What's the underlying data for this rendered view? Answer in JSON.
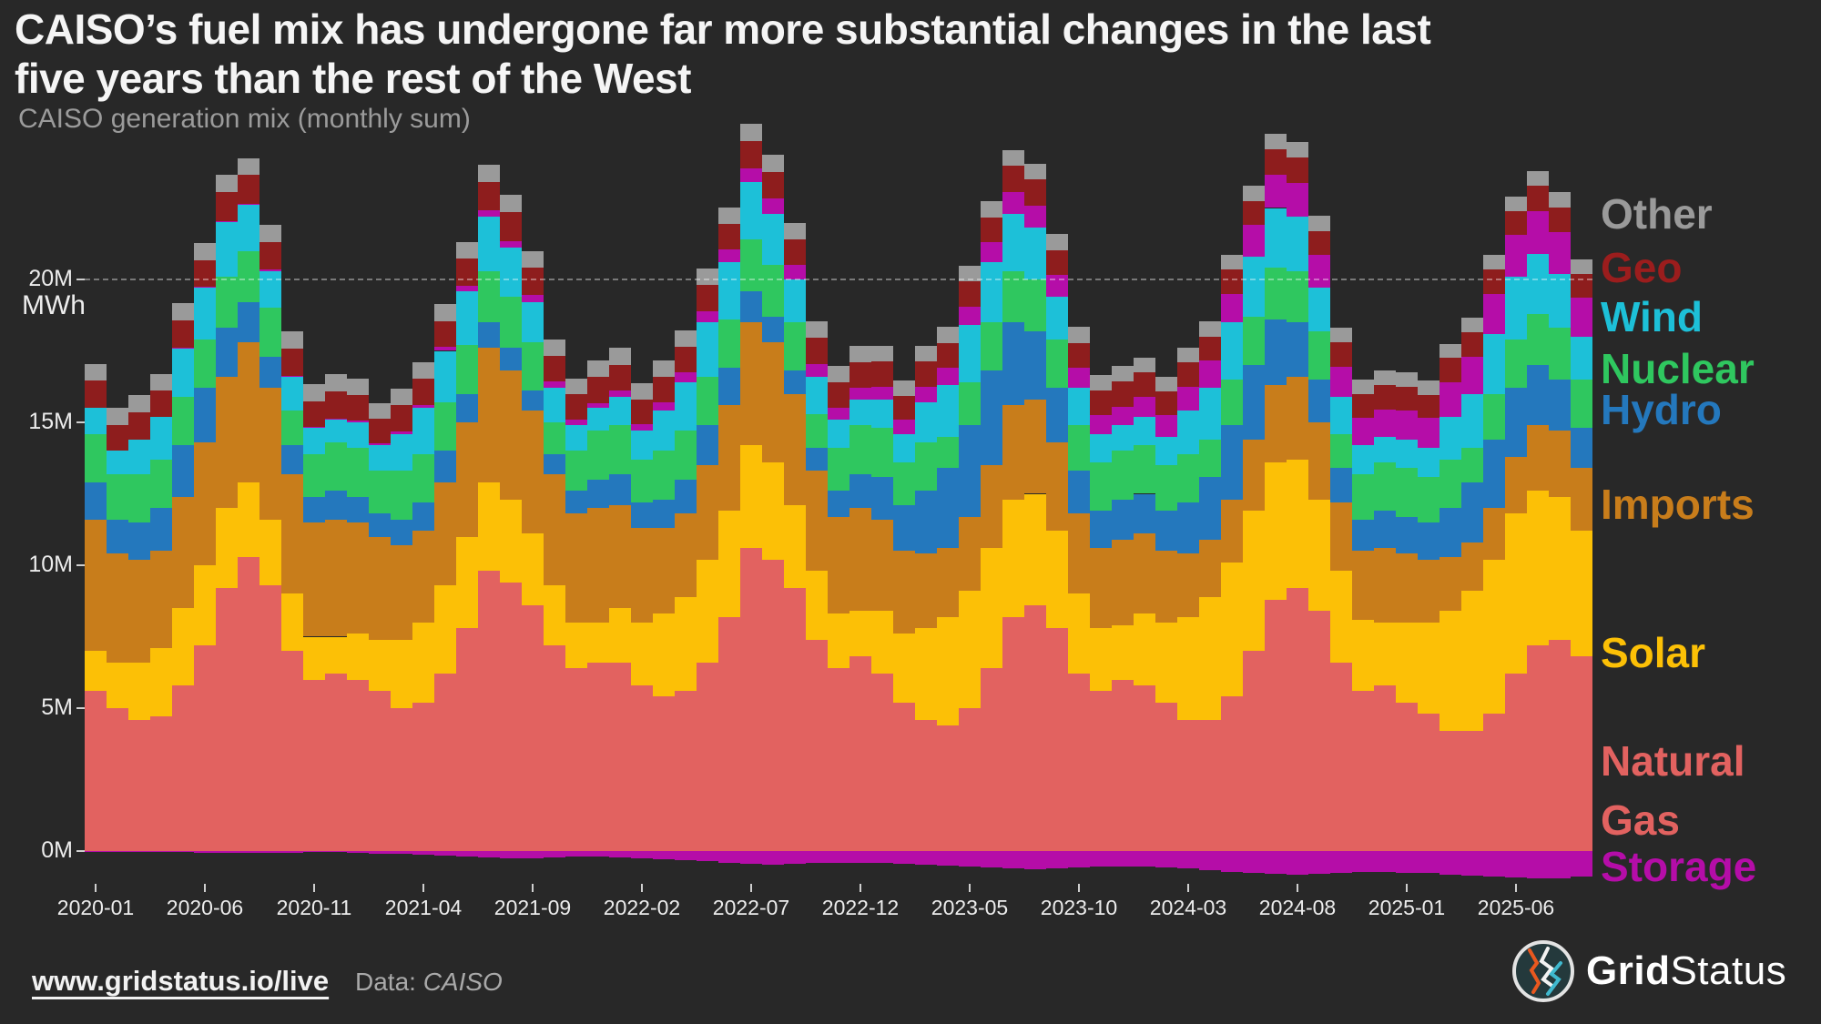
{
  "header": {
    "title": "CAISO’s fuel mix has undergone far more substantial changes in the last five years than the rest of the West",
    "subtitle": "CAISO generation mix (monthly sum)"
  },
  "legend": {
    "items": [
      {
        "id": "other",
        "label": "Other",
        "color": "#9a9a9a"
      },
      {
        "id": "geo",
        "label": "Geo",
        "color": "#9b1d1d"
      },
      {
        "id": "wind",
        "label": "Wind",
        "color": "#1dc0d8"
      },
      {
        "id": "nuclear",
        "label": "Nuclear",
        "color": "#2fc75f"
      },
      {
        "id": "hydro",
        "label": "Hydro",
        "color": "#2478bd"
      },
      {
        "id": "imports",
        "label": "Imports",
        "color": "#c87d1b"
      },
      {
        "id": "solar",
        "label": "Solar",
        "color": "#fcc006"
      },
      {
        "id": "natural_gas",
        "label": "Natural\nGas",
        "color": "#e26260"
      },
      {
        "id": "storage",
        "label": "Storage",
        "color": "#b50da8"
      }
    ]
  },
  "footer": {
    "url": "www.gridstatus.io/live",
    "data_label": "Data: ",
    "data_source": "CAISO"
  },
  "brand": {
    "word1": "Grid",
    "word2": "Status"
  },
  "colors": {
    "background": "#282828",
    "title_text": "#f5f5f5",
    "subtitle_text": "#9b9b9b",
    "axis_text": "#ececec",
    "gridline": "rgba(255,255,255,0.38)"
  },
  "chart_data": {
    "type": "bar",
    "stacked": true,
    "title": "CAISO generation mix (monthly sum)",
    "ylabel": "MWh",
    "unit": "million MWh",
    "ylim": [
      -1.1,
      25.6
    ],
    "y_ticks": [
      {
        "value": 20,
        "label": "20M"
      },
      {
        "value": 15,
        "label": "15M"
      },
      {
        "value": 10,
        "label": "10M"
      },
      {
        "value": 5,
        "label": "5M"
      },
      {
        "value": 0,
        "label": "0M"
      }
    ],
    "dashed_gridline_value": 20,
    "x_tick_indices": [
      0,
      5,
      10,
      15,
      20,
      25,
      30,
      35,
      40,
      45,
      50,
      55,
      60,
      65
    ],
    "x": [
      "2020-01",
      "2020-02",
      "2020-03",
      "2020-04",
      "2020-05",
      "2020-06",
      "2020-07",
      "2020-08",
      "2020-09",
      "2020-10",
      "2020-11",
      "2020-12",
      "2021-01",
      "2021-02",
      "2021-03",
      "2021-04",
      "2021-05",
      "2021-06",
      "2021-07",
      "2021-08",
      "2021-09",
      "2021-10",
      "2021-11",
      "2021-12",
      "2022-01",
      "2022-02",
      "2022-03",
      "2022-04",
      "2022-05",
      "2022-06",
      "2022-07",
      "2022-08",
      "2022-09",
      "2022-10",
      "2022-11",
      "2022-12",
      "2023-01",
      "2023-02",
      "2023-03",
      "2023-04",
      "2023-05",
      "2023-06",
      "2023-07",
      "2023-08",
      "2023-09",
      "2023-10",
      "2023-11",
      "2023-12",
      "2024-01",
      "2024-02",
      "2024-03",
      "2024-04",
      "2024-05",
      "2024-06",
      "2024-07",
      "2024-08",
      "2024-09",
      "2024-10",
      "2024-11",
      "2024-12",
      "2025-01",
      "2025-02",
      "2025-03",
      "2025-04",
      "2025-05",
      "2025-06",
      "2025-07",
      "2025-08",
      "2025-09"
    ],
    "series": [
      {
        "id": "natural_gas",
        "name": "Natural Gas",
        "color": "#e26260",
        "values": [
          5.6,
          5.0,
          4.6,
          4.7,
          5.8,
          7.2,
          9.2,
          10.3,
          9.3,
          7.0,
          6.0,
          6.2,
          6.0,
          5.6,
          5.0,
          5.2,
          6.2,
          7.8,
          9.8,
          9.4,
          8.6,
          7.2,
          6.4,
          6.6,
          6.6,
          5.8,
          5.4,
          5.6,
          6.6,
          8.2,
          10.6,
          10.2,
          9.2,
          7.4,
          6.4,
          6.8,
          6.2,
          5.2,
          4.6,
          4.4,
          5.0,
          6.4,
          8.2,
          8.6,
          7.8,
          6.2,
          5.6,
          6.0,
          5.8,
          5.2,
          4.6,
          4.6,
          5.4,
          7.0,
          8.8,
          9.2,
          8.4,
          6.6,
          5.6,
          5.8,
          5.2,
          4.8,
          4.2,
          4.2,
          4.8,
          6.2,
          7.2,
          7.4,
          6.8
        ]
      },
      {
        "id": "solar",
        "name": "Solar",
        "color": "#fcc006",
        "values": [
          1.4,
          1.6,
          2.0,
          2.4,
          2.7,
          2.8,
          2.8,
          2.6,
          2.3,
          2.0,
          1.5,
          1.3,
          1.6,
          1.8,
          2.4,
          2.8,
          3.1,
          3.2,
          3.1,
          2.9,
          2.5,
          2.1,
          1.6,
          1.4,
          1.9,
          2.2,
          2.9,
          3.3,
          3.6,
          3.7,
          3.6,
          3.4,
          2.9,
          2.4,
          1.9,
          1.6,
          2.2,
          2.4,
          3.2,
          3.8,
          4.1,
          4.2,
          4.1,
          3.9,
          3.4,
          2.8,
          2.2,
          1.9,
          2.5,
          2.8,
          3.6,
          4.3,
          4.7,
          4.9,
          4.8,
          4.5,
          3.9,
          3.2,
          2.5,
          2.2,
          2.8,
          3.2,
          4.2,
          4.9,
          5.4,
          5.6,
          5.4,
          5.0,
          4.4
        ]
      },
      {
        "id": "imports",
        "name": "Imports",
        "color": "#c87d1b",
        "values": [
          4.6,
          3.8,
          3.6,
          3.4,
          3.9,
          4.3,
          4.6,
          4.9,
          4.6,
          4.2,
          4.0,
          4.1,
          3.9,
          3.6,
          3.3,
          3.2,
          3.6,
          4.0,
          4.7,
          4.5,
          4.3,
          3.9,
          3.8,
          4.0,
          3.6,
          3.3,
          3.0,
          2.9,
          3.3,
          3.7,
          4.3,
          4.2,
          3.9,
          3.5,
          3.4,
          3.6,
          3.2,
          2.9,
          2.6,
          2.4,
          2.6,
          2.9,
          3.3,
          3.3,
          3.1,
          2.8,
          2.8,
          3.0,
          2.8,
          2.5,
          2.2,
          2.0,
          2.2,
          2.5,
          2.7,
          2.9,
          2.7,
          2.4,
          2.4,
          2.6,
          2.4,
          2.2,
          1.9,
          1.7,
          1.8,
          2.0,
          2.3,
          2.3,
          2.2
        ]
      },
      {
        "id": "hydro",
        "name": "Hydro",
        "color": "#2478bd",
        "values": [
          1.3,
          1.2,
          1.3,
          1.5,
          1.8,
          1.9,
          1.7,
          1.4,
          1.1,
          1.0,
          0.9,
          1.0,
          0.9,
          0.8,
          0.9,
          1.0,
          1.1,
          1.0,
          0.9,
          0.8,
          0.7,
          0.7,
          0.8,
          1.0,
          1.1,
          0.9,
          1.0,
          1.2,
          1.4,
          1.3,
          1.1,
          0.9,
          0.8,
          0.8,
          0.9,
          1.2,
          1.5,
          1.6,
          2.2,
          2.8,
          3.2,
          3.3,
          2.9,
          2.4,
          1.9,
          1.5,
          1.3,
          1.4,
          1.4,
          1.4,
          1.8,
          2.2,
          2.6,
          2.6,
          2.3,
          1.9,
          1.5,
          1.2,
          1.1,
          1.3,
          1.3,
          1.3,
          1.7,
          2.1,
          2.4,
          2.4,
          2.1,
          1.8,
          1.4
        ]
      },
      {
        "id": "nuclear",
        "name": "Nuclear",
        "color": "#2fc75f",
        "values": [
          1.7,
          1.6,
          1.7,
          1.7,
          1.7,
          1.7,
          1.8,
          1.8,
          1.7,
          1.2,
          1.5,
          1.7,
          1.7,
          1.5,
          1.7,
          1.7,
          1.7,
          1.7,
          1.8,
          1.8,
          1.7,
          1.1,
          1.4,
          1.7,
          1.7,
          1.5,
          1.7,
          1.7,
          1.7,
          1.7,
          1.8,
          1.8,
          1.7,
          1.2,
          1.5,
          1.7,
          1.7,
          1.5,
          1.7,
          1.1,
          1.5,
          1.7,
          1.8,
          1.8,
          1.7,
          1.6,
          1.7,
          1.7,
          1.7,
          1.6,
          1.7,
          1.3,
          1.6,
          1.7,
          1.8,
          1.8,
          1.7,
          1.2,
          1.6,
          1.7,
          1.7,
          1.6,
          1.7,
          1.2,
          1.6,
          1.7,
          1.8,
          1.8,
          1.7
        ]
      },
      {
        "id": "wind",
        "name": "Wind",
        "color": "#1dc0d8",
        "values": [
          0.9,
          0.8,
          1.2,
          1.5,
          1.7,
          1.8,
          1.9,
          1.6,
          1.3,
          1.2,
          0.9,
          0.8,
          0.9,
          0.9,
          1.3,
          1.6,
          1.8,
          1.9,
          1.9,
          1.7,
          1.4,
          1.2,
          0.9,
          0.8,
          1.0,
          1.0,
          1.4,
          1.7,
          1.9,
          2.0,
          2.0,
          1.8,
          1.5,
          1.3,
          1.0,
          0.9,
          1.0,
          1.0,
          1.4,
          1.8,
          2.0,
          2.1,
          2.0,
          1.8,
          1.5,
          1.3,
          1.0,
          0.9,
          1.0,
          1.0,
          1.5,
          1.8,
          2.0,
          2.1,
          2.1,
          1.9,
          1.5,
          1.3,
          1.0,
          0.9,
          1.0,
          1.0,
          1.5,
          1.9,
          2.1,
          2.2,
          2.1,
          1.9,
          1.5
        ]
      },
      {
        "id": "storage",
        "name": "Storage (discharge)",
        "color": "#b50da8",
        "values": [
          0.0,
          0.0,
          0.0,
          0.0,
          0.02,
          0.03,
          0.05,
          0.05,
          0.05,
          0.04,
          0.03,
          0.03,
          0.06,
          0.07,
          0.09,
          0.12,
          0.15,
          0.18,
          0.22,
          0.25,
          0.25,
          0.22,
          0.18,
          0.18,
          0.22,
          0.25,
          0.3,
          0.35,
          0.4,
          0.45,
          0.5,
          0.52,
          0.5,
          0.45,
          0.4,
          0.4,
          0.45,
          0.48,
          0.55,
          0.6,
          0.65,
          0.7,
          0.75,
          0.78,
          0.75,
          0.7,
          0.65,
          0.65,
          0.7,
          0.75,
          0.85,
          0.95,
          1.0,
          1.1,
          1.15,
          1.18,
          1.15,
          1.05,
          0.95,
          0.95,
          1.0,
          1.05,
          1.2,
          1.3,
          1.4,
          1.45,
          1.5,
          1.45,
          1.35
        ]
      },
      {
        "id": "geo",
        "name": "Geo",
        "color": "#8e1d1d",
        "values": [
          0.95,
          0.9,
          0.95,
          0.9,
          0.95,
          0.95,
          1.0,
          1.0,
          0.95,
          0.95,
          0.9,
          0.95,
          0.9,
          0.85,
          0.9,
          0.9,
          0.9,
          0.95,
          1.0,
          1.0,
          0.95,
          0.9,
          0.9,
          0.9,
          0.9,
          0.85,
          0.9,
          0.9,
          0.9,
          0.9,
          0.95,
          0.95,
          0.9,
          0.9,
          0.9,
          0.9,
          0.88,
          0.85,
          0.88,
          0.88,
          0.88,
          0.88,
          0.92,
          0.92,
          0.88,
          0.88,
          0.88,
          0.88,
          0.85,
          0.82,
          0.85,
          0.85,
          0.85,
          0.85,
          0.9,
          0.9,
          0.85,
          0.85,
          0.85,
          0.85,
          0.85,
          0.82,
          0.85,
          0.85,
          0.85,
          0.85,
          0.88,
          0.88,
          0.85
        ]
      },
      {
        "id": "other",
        "name": "Other",
        "color": "#9a9a9a",
        "values": [
          0.6,
          0.6,
          0.6,
          0.6,
          0.6,
          0.6,
          0.6,
          0.6,
          0.6,
          0.6,
          0.6,
          0.6,
          0.58,
          0.56,
          0.58,
          0.58,
          0.58,
          0.58,
          0.6,
          0.6,
          0.58,
          0.58,
          0.56,
          0.58,
          0.58,
          0.56,
          0.58,
          0.58,
          0.58,
          0.58,
          0.6,
          0.6,
          0.58,
          0.58,
          0.56,
          0.58,
          0.55,
          0.54,
          0.55,
          0.55,
          0.55,
          0.55,
          0.56,
          0.56,
          0.55,
          0.55,
          0.54,
          0.55,
          0.52,
          0.51,
          0.52,
          0.52,
          0.52,
          0.52,
          0.54,
          0.54,
          0.52,
          0.52,
          0.51,
          0.52,
          0.5,
          0.5,
          0.5,
          0.5,
          0.5,
          0.5,
          0.52,
          0.52,
          0.5
        ]
      }
    ],
    "negative_series": {
      "id": "storage_charge",
      "name": "Storage (charge)",
      "color": "#b50da8",
      "values": [
        -0.02,
        -0.02,
        -0.02,
        -0.03,
        -0.04,
        -0.05,
        -0.06,
        -0.06,
        -0.06,
        -0.05,
        -0.04,
        -0.04,
        -0.07,
        -0.08,
        -0.1,
        -0.13,
        -0.16,
        -0.19,
        -0.22,
        -0.25,
        -0.25,
        -0.22,
        -0.19,
        -0.19,
        -0.22,
        -0.25,
        -0.28,
        -0.32,
        -0.36,
        -0.4,
        -0.45,
        -0.47,
        -0.45,
        -0.42,
        -0.4,
        -0.4,
        -0.42,
        -0.44,
        -0.48,
        -0.52,
        -0.55,
        -0.58,
        -0.62,
        -0.64,
        -0.62,
        -0.58,
        -0.55,
        -0.55,
        -0.55,
        -0.57,
        -0.62,
        -0.68,
        -0.72,
        -0.76,
        -0.8,
        -0.82,
        -0.8,
        -0.75,
        -0.72,
        -0.72,
        -0.75,
        -0.77,
        -0.82,
        -0.87,
        -0.9,
        -0.93,
        -0.95,
        -0.94,
        -0.9
      ]
    },
    "legend_position": "right"
  }
}
